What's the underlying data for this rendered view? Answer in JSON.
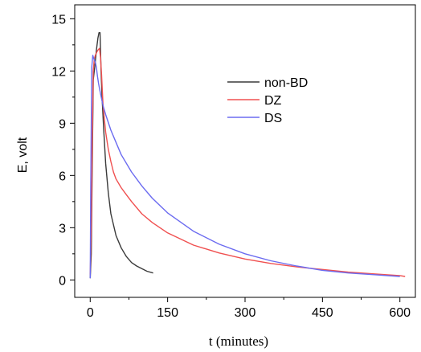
{
  "chart_data": {
    "type": "line",
    "xlabel": "t (minutes)",
    "ylabel": "E, volt",
    "xlim": [
      -30,
      630
    ],
    "ylim": [
      -1,
      15.8
    ],
    "xticks": [
      0,
      150,
      300,
      450,
      600
    ],
    "yticks": [
      0,
      3,
      6,
      9,
      12,
      15
    ],
    "grid": false,
    "legend_position": "top-right",
    "series": [
      {
        "name": "non-BD",
        "color": "#3a3a3a",
        "x": [
          0,
          2,
          4,
          6,
          9,
          12,
          15,
          17,
          19,
          21,
          23,
          26,
          30,
          35,
          40,
          50,
          60,
          70,
          80,
          90,
          100,
          110,
          122
        ],
        "y": [
          0.1,
          1.5,
          6.5,
          11.5,
          12.3,
          13.2,
          13.9,
          14.2,
          14.2,
          12.0,
          10.5,
          8.7,
          6.7,
          5.0,
          3.8,
          2.55,
          1.85,
          1.35,
          1.0,
          0.8,
          0.65,
          0.5,
          0.4
        ]
      },
      {
        "name": "DZ",
        "color": "#f05050",
        "x": [
          0,
          2,
          4,
          6,
          8,
          10,
          13,
          15,
          18,
          20,
          22,
          25,
          30,
          35,
          40,
          45,
          50,
          60,
          70,
          80,
          100,
          120,
          150,
          200,
          250,
          300,
          350,
          400,
          450,
          500,
          550,
          600,
          610
        ],
        "y": [
          0.3,
          3.0,
          8.0,
          12.0,
          12.7,
          12.9,
          13.1,
          13.2,
          13.3,
          12.8,
          11.8,
          10.0,
          8.5,
          7.5,
          6.8,
          6.2,
          5.8,
          5.3,
          4.9,
          4.5,
          3.8,
          3.3,
          2.7,
          2.0,
          1.55,
          1.2,
          0.95,
          0.75,
          0.6,
          0.45,
          0.35,
          0.25,
          0.2
        ]
      },
      {
        "name": "DS",
        "color": "#6b6bf0",
        "x": [
          0,
          1,
          3,
          5,
          7,
          10,
          12,
          14,
          16,
          18,
          20,
          25,
          30,
          40,
          50,
          60,
          80,
          100,
          120,
          150,
          200,
          250,
          300,
          350,
          400,
          450,
          500,
          550,
          600
        ],
        "y": [
          0.1,
          5.0,
          12.2,
          12.9,
          12.7,
          12.5,
          12.2,
          11.7,
          11.3,
          11.0,
          10.7,
          10.0,
          9.5,
          8.6,
          7.9,
          7.2,
          6.2,
          5.4,
          4.7,
          3.85,
          2.8,
          2.05,
          1.5,
          1.1,
          0.8,
          0.55,
          0.4,
          0.3,
          0.2
        ]
      }
    ]
  }
}
